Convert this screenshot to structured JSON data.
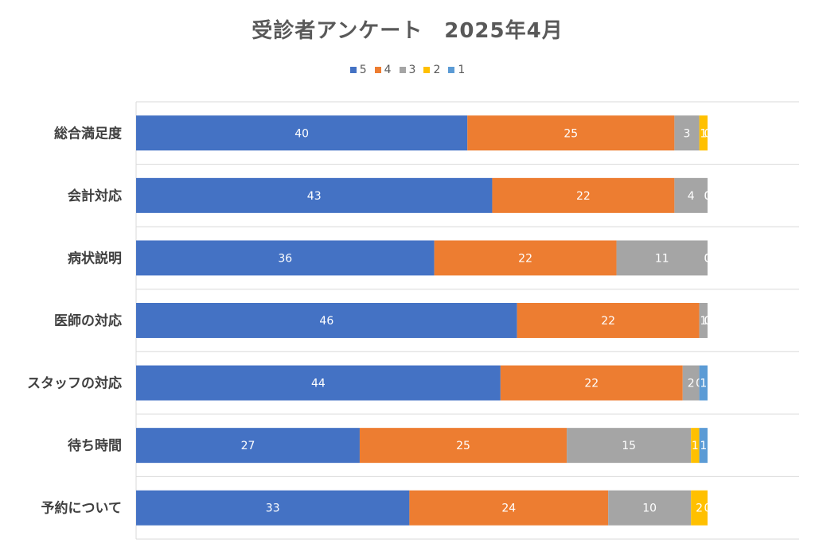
{
  "chart_data": {
    "type": "bar",
    "orientation": "horizontal",
    "stacked": true,
    "title": "受診者アンケート　2025年4月",
    "categories": [
      "総合満足度",
      "会計対応",
      "病状説明",
      "医師の対応",
      "スタッフの対応",
      "待ち時間",
      "予約について"
    ],
    "series": [
      {
        "name": "5",
        "color": "#4472C4",
        "values": [
          40,
          43,
          36,
          46,
          44,
          27,
          33
        ]
      },
      {
        "name": "4",
        "color": "#ED7D31",
        "values": [
          25,
          22,
          22,
          22,
          22,
          25,
          24
        ]
      },
      {
        "name": "3",
        "color": "#A5A5A5",
        "values": [
          3,
          4,
          11,
          1,
          2,
          15,
          10
        ]
      },
      {
        "name": "2",
        "color": "#FFC000",
        "values": [
          1,
          0,
          0,
          0,
          0,
          1,
          2
        ]
      },
      {
        "name": "1",
        "color": "#5B9BD5",
        "values": [
          0,
          0,
          0,
          0,
          1,
          1,
          0
        ]
      }
    ],
    "legend_position": "top",
    "grid": "horizontal",
    "data_labels": true
  }
}
